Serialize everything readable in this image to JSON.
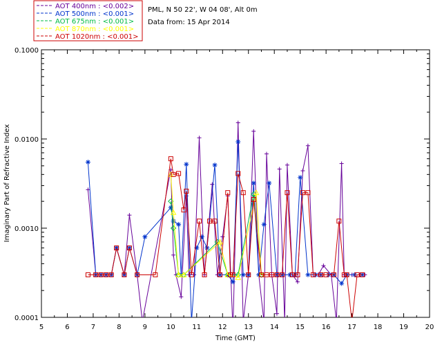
{
  "site_info": {
    "line1": "PML, N 50 22', W 04 08', Alt 0m",
    "line2": "Data from: 15 Apr 2014"
  },
  "chart_data": {
    "type": "line",
    "title": "",
    "xlabel": "Time (GMT)",
    "ylabel": "Imaginary Part of Refractive Index",
    "xlim": [
      5,
      20
    ],
    "ylim": [
      0.0001,
      0.1
    ],
    "yscale": "log",
    "xticks": [
      "5",
      "6",
      "7",
      "8",
      "9",
      "10",
      "11",
      "12",
      "13",
      "14",
      "15",
      "16",
      "17",
      "18",
      "19",
      "20"
    ],
    "yticks": [
      {
        "value": 0.0001,
        "label": "0.0001"
      },
      {
        "value": 0.001,
        "label": "0.0010"
      },
      {
        "value": 0.01,
        "label": "0.0100"
      },
      {
        "value": 0.1,
        "label": "0.1000"
      }
    ],
    "legend_position": "top-left, outside plot",
    "series": [
      {
        "name": "AOT  400nm : <0.002>",
        "color": "#660099",
        "marker": "plus",
        "points": [
          [
            6.8,
            0.0027
          ],
          [
            7.1,
            0.0003
          ],
          [
            7.3,
            0.0003
          ],
          [
            7.5,
            0.0003
          ],
          [
            7.7,
            0.0003
          ],
          [
            7.9,
            0.0006
          ],
          [
            8.2,
            0.0003
          ],
          [
            8.4,
            0.0014
          ],
          [
            8.7,
            0.0003
          ],
          [
            8.9,
            9e-05
          ],
          [
            10.0,
            0.0045
          ],
          [
            10.1,
            0.0005
          ],
          [
            10.2,
            0.0003
          ],
          [
            10.4,
            0.00017
          ],
          [
            10.6,
            0.0023
          ],
          [
            10.7,
            0.0003
          ],
          [
            10.9,
            0.0003
          ],
          [
            11.1,
            0.0103
          ],
          [
            11.3,
            0.0003
          ],
          [
            11.6,
            0.0031
          ],
          [
            11.8,
            0.0003
          ],
          [
            12.0,
            0.0008
          ],
          [
            12.2,
            0.0023
          ],
          [
            12.4,
            7e-05
          ],
          [
            12.6,
            0.0152
          ],
          [
            12.8,
            9e-05
          ],
          [
            13.0,
            0.0003
          ],
          [
            13.2,
            0.0122
          ],
          [
            13.4,
            0.0003
          ],
          [
            13.6,
            9e-05
          ],
          [
            13.7,
            0.0068
          ],
          [
            13.9,
            0.0003
          ],
          [
            14.1,
            0.00011
          ],
          [
            14.2,
            0.0046
          ],
          [
            14.4,
            9e-05
          ],
          [
            14.5,
            0.0051
          ],
          [
            14.7,
            0.0003
          ],
          [
            14.9,
            0.00025
          ],
          [
            15.1,
            0.0044
          ],
          [
            15.3,
            0.0084
          ],
          [
            15.5,
            0.0003
          ],
          [
            15.7,
            0.0003
          ],
          [
            15.9,
            0.00038
          ],
          [
            16.2,
            0.0003
          ],
          [
            16.4,
            9e-05
          ],
          [
            16.6,
            0.0053
          ],
          [
            16.7,
            0.0003
          ],
          [
            17.0,
            0.0003
          ],
          [
            17.3,
            0.0003
          ],
          [
            17.5,
            0.0003
          ]
        ]
      },
      {
        "name": "AOT  500nm : <0.001>",
        "color": "#0033cc",
        "marker": "asterisk",
        "points": [
          [
            6.8,
            0.0055
          ],
          [
            7.1,
            0.0003
          ],
          [
            7.3,
            0.0003
          ],
          [
            7.5,
            0.0003
          ],
          [
            7.7,
            0.0003
          ],
          [
            7.9,
            0.0006
          ],
          [
            8.2,
            0.0003
          ],
          [
            8.4,
            0.0006
          ],
          [
            8.7,
            0.0003
          ],
          [
            9.0,
            0.0008
          ],
          [
            10.0,
            0.0017
          ],
          [
            10.1,
            0.0012
          ],
          [
            10.3,
            0.0011
          ],
          [
            10.4,
            0.0003
          ],
          [
            10.6,
            0.0052
          ],
          [
            10.8,
            9e-05
          ],
          [
            11.0,
            0.0006
          ],
          [
            11.2,
            0.0008
          ],
          [
            11.4,
            0.0006
          ],
          [
            11.7,
            0.0051
          ],
          [
            11.9,
            0.0003
          ],
          [
            12.2,
            0.0003
          ],
          [
            12.4,
            0.00025
          ],
          [
            12.6,
            0.0093
          ],
          [
            12.8,
            0.0003
          ],
          [
            13.0,
            0.0003
          ],
          [
            13.2,
            0.0032
          ],
          [
            13.4,
            0.0003
          ],
          [
            13.6,
            0.0011
          ],
          [
            13.8,
            0.0032
          ],
          [
            14.1,
            0.0003
          ],
          [
            14.3,
            0.0003
          ],
          [
            14.6,
            0.0003
          ],
          [
            14.8,
            0.0003
          ],
          [
            15.0,
            0.0037
          ],
          [
            15.3,
            0.0003
          ],
          [
            15.6,
            0.0003
          ],
          [
            15.8,
            0.0003
          ],
          [
            16.1,
            0.0003
          ],
          [
            16.3,
            0.0003
          ],
          [
            16.6,
            0.00024
          ],
          [
            16.8,
            0.0003
          ],
          [
            17.1,
            0.0003
          ],
          [
            17.4,
            0.0003
          ]
        ]
      },
      {
        "name": "AOT  675nm : <0.001>",
        "color": "#00bb44",
        "marker": "diamond",
        "points": [
          [
            10.0,
            0.002
          ],
          [
            10.1,
            0.001
          ],
          [
            10.3,
            0.0003
          ],
          [
            10.5,
            0.0003
          ],
          [
            11.8,
            0.0007
          ],
          [
            12.2,
            0.0003
          ],
          [
            12.6,
            0.0003
          ],
          [
            13.2,
            0.0024
          ],
          [
            13.5,
            0.0003
          ]
        ]
      },
      {
        "name": "AOT  870nm : <0.001>",
        "color": "#ffff00",
        "marker": "triangle",
        "points": [
          [
            10.0,
            0.004
          ],
          [
            10.1,
            0.0015
          ],
          [
            10.3,
            0.0003
          ],
          [
            10.5,
            0.0003
          ],
          [
            11.9,
            0.0007
          ],
          [
            12.2,
            0.0003
          ],
          [
            12.6,
            0.00028
          ],
          [
            13.3,
            0.0025
          ],
          [
            13.5,
            0.0003
          ]
        ]
      },
      {
        "name": "AOT 1020nm : <0.001>",
        "color": "#cc0000",
        "marker": "square",
        "points": [
          [
            6.8,
            0.0003
          ],
          [
            7.1,
            0.0003
          ],
          [
            7.3,
            0.0003
          ],
          [
            7.5,
            0.0003
          ],
          [
            7.7,
            0.0003
          ],
          [
            7.9,
            0.0006
          ],
          [
            8.2,
            0.0003
          ],
          [
            8.4,
            0.0006
          ],
          [
            8.7,
            0.0003
          ],
          [
            9.4,
            0.0003
          ],
          [
            10.0,
            0.006
          ],
          [
            10.1,
            0.004
          ],
          [
            10.3,
            0.0041
          ],
          [
            10.5,
            0.0016
          ],
          [
            10.6,
            0.0026
          ],
          [
            10.8,
            0.0003
          ],
          [
            11.1,
            0.0012
          ],
          [
            11.3,
            0.0003
          ],
          [
            11.5,
            0.0012
          ],
          [
            11.7,
            0.0012
          ],
          [
            11.9,
            0.0003
          ],
          [
            12.2,
            0.0025
          ],
          [
            12.3,
            0.0003
          ],
          [
            12.4,
            0.0003
          ],
          [
            12.6,
            0.0041
          ],
          [
            12.8,
            0.0025
          ],
          [
            13.0,
            0.0003
          ],
          [
            13.2,
            0.0021
          ],
          [
            13.5,
            0.0003
          ],
          [
            13.7,
            0.0003
          ],
          [
            13.9,
            0.0003
          ],
          [
            14.1,
            0.0003
          ],
          [
            14.3,
            0.0003
          ],
          [
            14.5,
            0.0025
          ],
          [
            14.7,
            0.0003
          ],
          [
            14.9,
            0.0003
          ],
          [
            15.1,
            0.0025
          ],
          [
            15.3,
            0.0025
          ],
          [
            15.5,
            0.0003
          ],
          [
            15.8,
            0.0003
          ],
          [
            16.0,
            0.0003
          ],
          [
            16.3,
            0.0003
          ],
          [
            16.5,
            0.0012
          ],
          [
            16.7,
            0.0003
          ],
          [
            16.8,
            0.0003
          ],
          [
            17.0,
            9e-05
          ],
          [
            17.2,
            0.0003
          ],
          [
            17.4,
            0.0003
          ]
        ]
      }
    ]
  }
}
